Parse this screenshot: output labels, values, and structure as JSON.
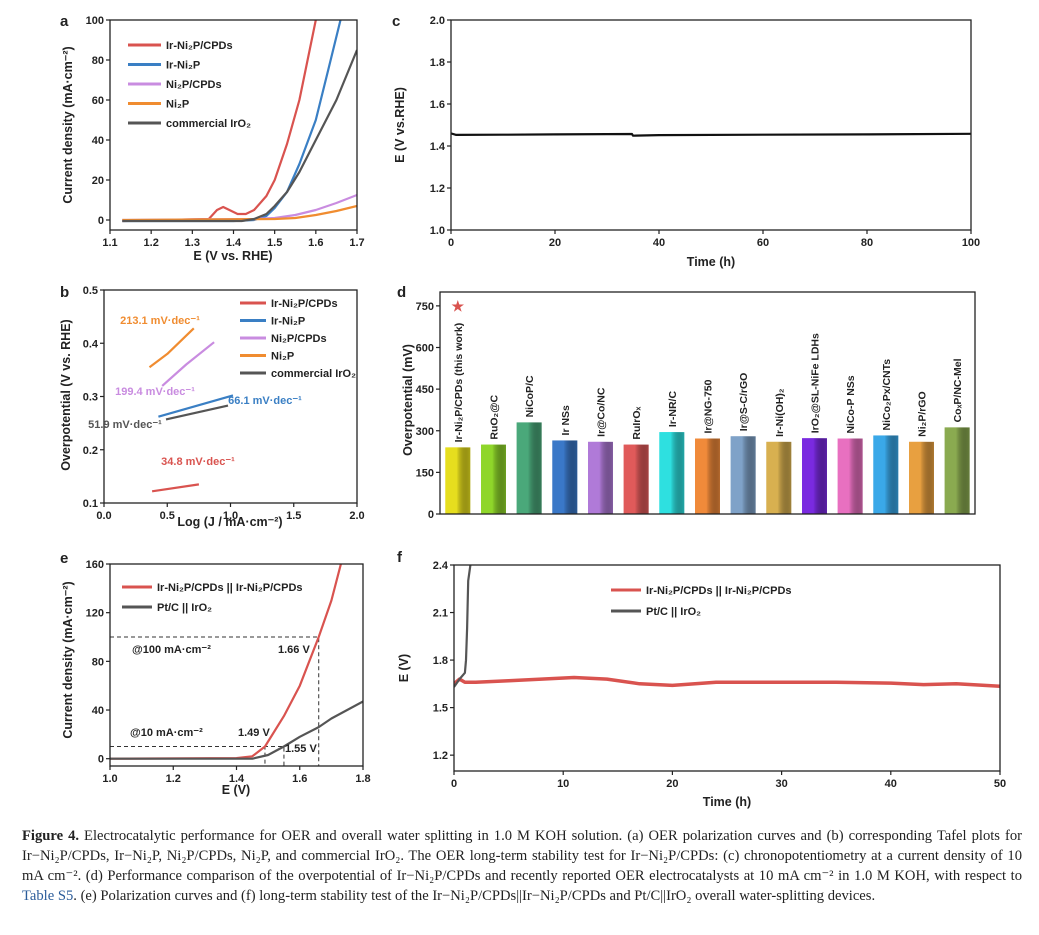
{
  "caption": {
    "label": "Figure 4.",
    "text_before_link": " Electrocatalytic performance for OER and overall water splitting in 1.0 M KOH solution. (a) OER polarization curves and (b) corresponding Tafel plots for Ir−Ni₂P/CPDs, Ir−Ni₂P, Ni₂P/CPDs, Ni₂P, and commercial IrO₂. The OER long-term stability test for Ir−Ni₂P/CPDs: (c) chronopotentiometry at a current density of 10 mA cm⁻². (d) Performance comparison of the overpotential of Ir−Ni₂P/CPDs and recently reported OER electrocatalysts at 10 mA cm⁻² in 1.0 M KOH, with respect to ",
    "link": "Table S5",
    "text_after_link": ". (e) Polarization curves and (f) long-term stability test of the Ir−Ni₂P/CPDs||Ir−Ni₂P/CPDs and Pt/C||IrO₂ overall water-splitting devices."
  },
  "chart_data": [
    {
      "panel": "a",
      "type": "line",
      "xlabel": "E (V vs. RHE)",
      "ylabel": "Current density (mA·cm⁻²)",
      "xlim": [
        1.1,
        1.7
      ],
      "ylim": [
        -5,
        100
      ],
      "xticks": [
        1.1,
        1.2,
        1.3,
        1.4,
        1.5,
        1.6,
        1.7
      ],
      "xtick_labels": [
        "1.1",
        "1.2",
        "1.3",
        "1.4",
        "1.5",
        "1.6",
        "1.7"
      ],
      "yticks": [
        0,
        20,
        40,
        60,
        80,
        100
      ],
      "ytick_labels": [
        "0",
        "20",
        "40",
        "60",
        "80",
        "100"
      ],
      "legend": "top-left",
      "series": [
        {
          "name": "Ir-Ni₂P/CPDs",
          "color": "#d9534f",
          "points": [
            [
              1.13,
              -0.5
            ],
            [
              1.34,
              0.5
            ],
            [
              1.36,
              5
            ],
            [
              1.375,
              6.5
            ],
            [
              1.39,
              5
            ],
            [
              1.41,
              3
            ],
            [
              1.43,
              3
            ],
            [
              1.45,
              5
            ],
            [
              1.48,
              12
            ],
            [
              1.5,
              20
            ],
            [
              1.53,
              38
            ],
            [
              1.56,
              60
            ],
            [
              1.58,
              80
            ],
            [
              1.6,
              100
            ]
          ]
        },
        {
          "name": "Ir-Ni₂P",
          "color": "#3a7fc4",
          "points": [
            [
              1.13,
              -0.5
            ],
            [
              1.4,
              -0.5
            ],
            [
              1.45,
              0
            ],
            [
              1.48,
              2
            ],
            [
              1.5,
              6
            ],
            [
              1.53,
              14
            ],
            [
              1.56,
              28
            ],
            [
              1.6,
              50
            ],
            [
              1.63,
              75
            ],
            [
              1.66,
              100
            ]
          ]
        },
        {
          "name": "Ni₂P/CPDs",
          "color": "#c98ce0",
          "points": [
            [
              1.13,
              0
            ],
            [
              1.45,
              0.5
            ],
            [
              1.5,
              1
            ],
            [
              1.55,
              2.5
            ],
            [
              1.6,
              5
            ],
            [
              1.65,
              8.5
            ],
            [
              1.7,
              12.5
            ]
          ]
        },
        {
          "name": "Ni₂P",
          "color": "#f08c30",
          "points": [
            [
              1.13,
              0
            ],
            [
              1.5,
              0.5
            ],
            [
              1.55,
              1
            ],
            [
              1.6,
              2.5
            ],
            [
              1.65,
              4.5
            ],
            [
              1.7,
              7
            ]
          ]
        },
        {
          "name": "commercial IrO₂",
          "color": "#555555",
          "points": [
            [
              1.13,
              -0.5
            ],
            [
              1.42,
              -0.5
            ],
            [
              1.45,
              0.5
            ],
            [
              1.48,
              3
            ],
            [
              1.5,
              7
            ],
            [
              1.53,
              14
            ],
            [
              1.56,
              24
            ],
            [
              1.6,
              40
            ],
            [
              1.65,
              60
            ],
            [
              1.7,
              85
            ]
          ]
        }
      ]
    },
    {
      "panel": "c",
      "type": "line",
      "xlabel": "Time (h)",
      "ylabel": "E (V vs.RHE)",
      "xlim": [
        0,
        100
      ],
      "ylim": [
        1.0,
        2.0
      ],
      "xticks": [
        0,
        20,
        40,
        60,
        80,
        100
      ],
      "xtick_labels": [
        "0",
        "20",
        "40",
        "60",
        "80",
        "100"
      ],
      "yticks": [
        1.0,
        1.2,
        1.4,
        1.6,
        1.8,
        2.0
      ],
      "ytick_labels": [
        "1.0",
        "1.2",
        "1.4",
        "1.6",
        "1.8",
        "2.0"
      ],
      "series": [
        {
          "name": "Ir-Ni₂P/CPDs",
          "color": "#111111",
          "points": [
            [
              0,
              1.46
            ],
            [
              1,
              1.453
            ],
            [
              10,
              1.454
            ],
            [
              20,
              1.455
            ],
            [
              34.8,
              1.457
            ],
            [
              35,
              1.449
            ],
            [
              40,
              1.452
            ],
            [
              60,
              1.454
            ],
            [
              80,
              1.455
            ],
            [
              100,
              1.458
            ]
          ]
        }
      ]
    },
    {
      "panel": "b",
      "type": "line",
      "xlabel": "Log (J / mA·cm⁻²)",
      "ylabel": "Overpotential (V vs. RHE)",
      "xlim": [
        0,
        2
      ],
      "ylim": [
        0.1,
        0.5
      ],
      "xticks": [
        0,
        0.5,
        1,
        1.5,
        2
      ],
      "xtick_labels": [
        "0.0",
        "0.5",
        "1.0",
        "1.5",
        "2.0"
      ],
      "yticks": [
        0.1,
        0.2,
        0.3,
        0.4,
        0.5
      ],
      "ytick_labels": [
        "0.1",
        "0.2",
        "0.3",
        "0.4",
        "0.5"
      ],
      "legend": "top-right",
      "series": [
        {
          "name": "Ir-Ni₂P/CPDs",
          "color": "#d9534f",
          "points": [
            [
              0.38,
              0.122
            ],
            [
              0.75,
              0.135
            ]
          ]
        },
        {
          "name": "Ir-Ni₂P",
          "color": "#3a7fc4",
          "points": [
            [
              0.43,
              0.262
            ],
            [
              1.02,
              0.302
            ]
          ]
        },
        {
          "name": "Ni₂P/CPDs",
          "color": "#c98ce0",
          "points": [
            [
              0.46,
              0.32
            ],
            [
              0.65,
              0.36
            ],
            [
              0.87,
              0.402
            ]
          ]
        },
        {
          "name": "Ni₂P",
          "color": "#f08c30",
          "points": [
            [
              0.36,
              0.355
            ],
            [
              0.5,
              0.38
            ],
            [
              0.71,
              0.428
            ]
          ]
        },
        {
          "name": "commercial IrO₂",
          "color": "#555555",
          "points": [
            [
              0.49,
              0.257
            ],
            [
              0.98,
              0.283
            ]
          ]
        }
      ],
      "annotations": [
        {
          "text": "213.1 mV·dec⁻¹",
          "color": "#f08c30"
        },
        {
          "text": "199.4 mV·dec⁻¹",
          "color": "#c98ce0"
        },
        {
          "text": "66.1 mV·dec⁻¹",
          "color": "#3a7fc4"
        },
        {
          "text": "51.9 mV·dec⁻¹",
          "color": "#555555"
        },
        {
          "text": "34.8 mV·dec⁻¹",
          "color": "#d9534f"
        }
      ]
    },
    {
      "panel": "d",
      "type": "bar",
      "ylabel": "Overpotential (mV)",
      "ylim": [
        0,
        800
      ],
      "yticks": [
        0,
        150,
        300,
        450,
        600,
        750
      ],
      "ytick_labels": [
        "0",
        "150",
        "300",
        "450",
        "600",
        "750"
      ],
      "highlight_marker": "★",
      "highlight_color": "#d9534f",
      "categories": [
        "Ir-Ni₂P/CPDs (this work)",
        "RuO₂@C",
        "NiCoP/C",
        "Ir NSs",
        "Ir@Co/NC",
        "RuIrOₓ",
        "Ir-NR/C",
        "Ir@NG-750",
        "Ir@S-C/rGO",
        "Ir-Ni(OH)₂",
        "IrO₂@SL-NiFe LDHs",
        "NiCo-P NSs",
        "NiCo₂Px/CNTs",
        "Ni₂P/rGO",
        "CoₓP/NC-Mel"
      ],
      "values": [
        240,
        250,
        330,
        265,
        260,
        250,
        295,
        272,
        280,
        260,
        273,
        272,
        283,
        260,
        312
      ],
      "colors": [
        "#e6de1e",
        "#8fd62a",
        "#4aa87a",
        "#3a78c8",
        "#b07ad8",
        "#e05a5a",
        "#2ee0e0",
        "#f08a3a",
        "#7fa2c8",
        "#d8b050",
        "#7a2ae0",
        "#e870c0",
        "#3aa8e8",
        "#e8a040",
        "#8aaa50"
      ]
    },
    {
      "panel": "e",
      "type": "line",
      "xlabel": "E (V)",
      "ylabel": "Current density (mA·cm⁻²)",
      "xlim": [
        1.0,
        1.8
      ],
      "ylim": [
        -6,
        160
      ],
      "xticks": [
        1.0,
        1.2,
        1.4,
        1.6,
        1.8
      ],
      "xtick_labels": [
        "1.0",
        "1.2",
        "1.4",
        "1.6",
        "1.8"
      ],
      "yticks": [
        0,
        40,
        80,
        120,
        160
      ],
      "ytick_labels": [
        "0",
        "40",
        "80",
        "120",
        "160"
      ],
      "legend": "top-left",
      "series": [
        {
          "name": "Ir-Ni₂P/CPDs || Ir-Ni₂P/CPDs",
          "color": "#d9534f",
          "points": [
            [
              1.0,
              0
            ],
            [
              1.4,
              0.5
            ],
            [
              1.45,
              2
            ],
            [
              1.49,
              10
            ],
            [
              1.55,
              35
            ],
            [
              1.6,
              60
            ],
            [
              1.66,
              100
            ],
            [
              1.7,
              130
            ],
            [
              1.73,
              160
            ]
          ]
        },
        {
          "name": "Pt/C || IrO₂",
          "color": "#555555",
          "points": [
            [
              1.0,
              0
            ],
            [
              1.45,
              0
            ],
            [
              1.5,
              3
            ],
            [
              1.55,
              10
            ],
            [
              1.6,
              18
            ],
            [
              1.66,
              26
            ],
            [
              1.7,
              33
            ],
            [
              1.8,
              47
            ]
          ]
        }
      ],
      "reference_lines": [
        {
          "y": 100,
          "x": 1.66
        },
        {
          "y": 10,
          "x": 1.55
        },
        {
          "y": 10,
          "x": 1.49
        }
      ],
      "annotations": [
        {
          "text": "@100 mA·cm⁻²",
          "color": "#222222"
        },
        {
          "text": "1.66 V",
          "color": "#222222"
        },
        {
          "text": "@10 mA·cm⁻²",
          "color": "#222222"
        },
        {
          "text": "1.49 V",
          "color": "#222222"
        },
        {
          "text": "1.55 V",
          "color": "#222222"
        }
      ]
    },
    {
      "panel": "f",
      "type": "line",
      "xlabel": "Time (h)",
      "ylabel": "E (V)",
      "xlim": [
        0,
        50
      ],
      "ylim": [
        1.1,
        2.4
      ],
      "xticks": [
        0,
        10,
        20,
        30,
        40,
        50
      ],
      "xtick_labels": [
        "0",
        "10",
        "20",
        "30",
        "40",
        "50"
      ],
      "yticks": [
        1.2,
        1.5,
        1.8,
        2.1,
        2.4
      ],
      "ytick_labels": [
        "1.2",
        "1.5",
        "1.8",
        "2.1",
        "2.4"
      ],
      "legend": "top-center",
      "series": [
        {
          "name": "Ir-Ni₂P/CPDs || Ir-Ni₂P/CPDs",
          "color": "#d9534f",
          "points": [
            [
              0,
              1.65
            ],
            [
              0.5,
              1.68
            ],
            [
              1,
              1.66
            ],
            [
              2,
              1.66
            ],
            [
              5,
              1.67
            ],
            [
              8,
              1.68
            ],
            [
              11,
              1.69
            ],
            [
              14,
              1.68
            ],
            [
              17,
              1.65
            ],
            [
              20,
              1.64
            ],
            [
              24,
              1.66
            ],
            [
              30,
              1.66
            ],
            [
              35,
              1.66
            ],
            [
              40,
              1.655
            ],
            [
              43,
              1.645
            ],
            [
              46,
              1.65
            ],
            [
              50,
              1.635
            ]
          ]
        },
        {
          "name": "Pt/C || IrO₂",
          "color": "#555555",
          "points": [
            [
              0,
              1.63
            ],
            [
              0.5,
              1.68
            ],
            [
              1,
              1.72
            ],
            [
              1.1,
              1.8
            ],
            [
              1.2,
              2.0
            ],
            [
              1.3,
              2.3
            ],
            [
              1.5,
              2.4
            ]
          ]
        }
      ]
    }
  ]
}
